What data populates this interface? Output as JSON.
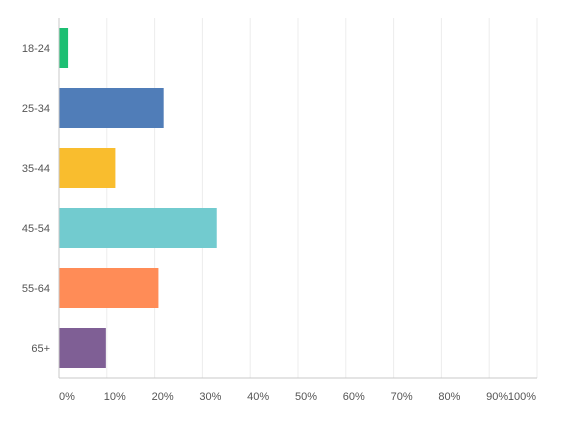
{
  "chart_data": {
    "type": "bar",
    "orientation": "horizontal",
    "categories": [
      "18-24",
      "25-34",
      "35-44",
      "45-54",
      "55-64",
      "65+"
    ],
    "values": [
      1.9,
      21.9,
      11.8,
      33.0,
      20.8,
      9.8
    ],
    "colors": [
      "#1dbf73",
      "#507db8",
      "#f9bd2e",
      "#72cbcf",
      "#ff8c57",
      "#7f5f95"
    ],
    "x_ticks": [
      "0%",
      "10%",
      "20%",
      "30%",
      "40%",
      "50%",
      "60%",
      "70%",
      "80%",
      "90%",
      "100%"
    ],
    "xlim": [
      0,
      100
    ],
    "grid": true,
    "legend": "none"
  }
}
